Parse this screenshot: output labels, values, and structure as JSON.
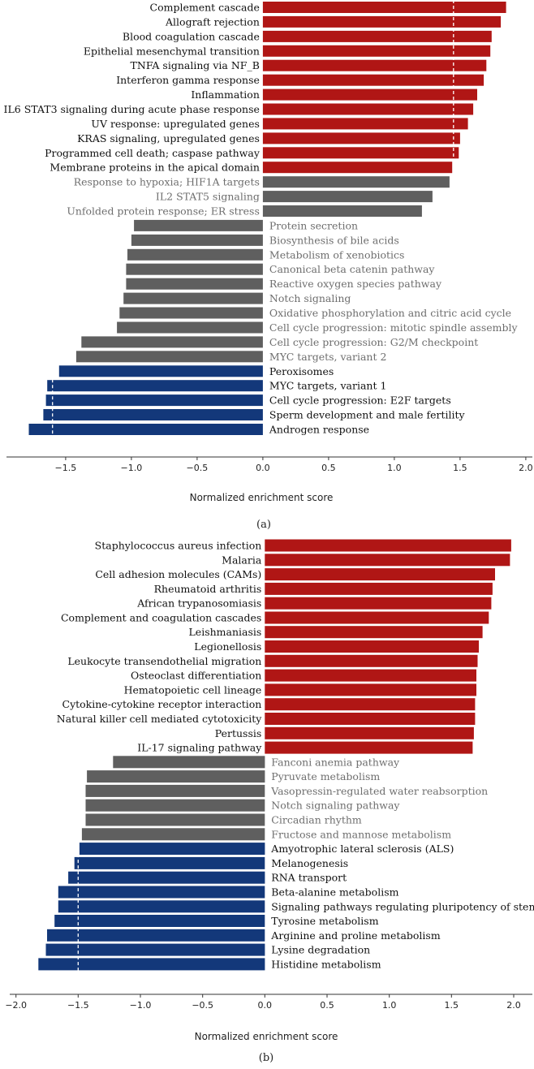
{
  "colors": {
    "up": "#b01615",
    "neutral": "#5f5f5f",
    "down": "#13387a",
    "sig_text": "#111111",
    "ns_text": "#6e6e6e"
  },
  "chart_data": [
    {
      "type": "bar",
      "orientation": "horizontal",
      "panel": "(a)",
      "xlabel": "Normalized enrichment score",
      "xlim": [
        -1.95,
        2.05
      ],
      "xticks": [
        -1.5,
        -1.0,
        -0.5,
        0.0,
        0.5,
        1.0,
        1.5,
        2.0
      ],
      "xtick_labels": [
        "−1.5",
        "−1.0",
        "−0.5",
        "0.0",
        "0.5",
        "1.0",
        "1.5",
        "2.0"
      ],
      "thresholds": [
        1.45,
        -1.6
      ],
      "categories": [
        "Complement cascade",
        "Allograft rejection",
        "Blood coagulation cascade",
        "Epithelial mesenchymal transition",
        "TNFA signaling via NF_B",
        "Interferon gamma response",
        "Inflammation",
        "IL6 STAT3 signaling during acute phase response",
        "UV response: upregulated genes",
        "KRAS signaling, upregulated genes",
        "Programmed cell death; caspase pathway",
        "Membrane proteins in the apical domain",
        "Response to hypoxia; HIF1A targets",
        "IL2 STAT5 signaling",
        "Unfolded protein response; ER stress",
        "Protein secretion",
        "Biosynthesis of bile acids",
        "Metabolism of xenobiotics",
        "Canonical beta catenin pathway",
        "Reactive oxygen species pathway",
        "Notch signaling",
        "Oxidative phosphorylation and citric acid cycle",
        "Cell cycle progression: mitotic spindle assembly",
        "Cell cycle progression: G2/M checkpoint",
        "MYC targets, variant 2",
        "Peroxisomes",
        "MYC targets, variant 1",
        "Cell cycle progression: E2F targets",
        "Sperm development and male fertility",
        "Androgen response"
      ],
      "values": [
        1.85,
        1.81,
        1.74,
        1.73,
        1.7,
        1.68,
        1.63,
        1.6,
        1.56,
        1.5,
        1.49,
        1.44,
        1.42,
        1.29,
        1.21,
        -0.98,
        -1.0,
        -1.03,
        -1.04,
        -1.04,
        -1.06,
        -1.09,
        -1.11,
        -1.38,
        -1.42,
        -1.55,
        -1.64,
        -1.65,
        -1.67,
        -1.78
      ],
      "group": [
        "up",
        "up",
        "up",
        "up",
        "up",
        "up",
        "up",
        "up",
        "up",
        "up",
        "up",
        "up",
        "neutral",
        "neutral",
        "neutral",
        "neutral",
        "neutral",
        "neutral",
        "neutral",
        "neutral",
        "neutral",
        "neutral",
        "neutral",
        "neutral",
        "neutral",
        "down",
        "down",
        "down",
        "down",
        "down"
      ]
    },
    {
      "type": "bar",
      "orientation": "horizontal",
      "panel": "(b)",
      "xlabel": "Normalized enrichment score",
      "xlim": [
        -2.05,
        2.15
      ],
      "xticks": [
        -2.0,
        -1.5,
        -1.0,
        -0.5,
        0.0,
        0.5,
        1.0,
        1.5,
        2.0
      ],
      "xtick_labels": [
        "−2.0",
        "−1.5",
        "−1.0",
        "−0.5",
        "0.0",
        "0.5",
        "1.0",
        "1.5",
        "2.0"
      ],
      "thresholds": [
        -1.5
      ],
      "categories": [
        "Staphylococcus aureus infection",
        "Malaria",
        "Cell adhesion molecules (CAMs)",
        "Rheumatoid arthritis",
        "African trypanosomiasis",
        "Complement and coagulation cascades",
        "Leishmaniasis",
        "Legionellosis",
        "Leukocyte transendothelial migration",
        "Osteoclast differentiation",
        "Hematopoietic cell lineage",
        "Cytokine-cytokine receptor interaction",
        "Natural killer cell mediated cytotoxicity",
        "Pertussis",
        "IL-17 signaling pathway",
        "Fanconi anemia pathway",
        "Pyruvate metabolism",
        "Vasopressin-regulated water reabsorption",
        "Notch signaling pathway",
        "Circadian rhythm",
        "Fructose and mannose metabolism",
        "Amyotrophic lateral sclerosis (ALS)",
        "Melanogenesis",
        "RNA transport",
        "Beta-alanine metabolism",
        "Signaling pathways regulating pluripotency of stem cells",
        "Tyrosine metabolism",
        "Arginine and proline metabolism",
        "Lysine degradation",
        "Histidine metabolism"
      ],
      "values": [
        1.98,
        1.97,
        1.85,
        1.83,
        1.82,
        1.8,
        1.75,
        1.72,
        1.71,
        1.7,
        1.7,
        1.69,
        1.69,
        1.68,
        1.67,
        -1.22,
        -1.43,
        -1.44,
        -1.44,
        -1.44,
        -1.47,
        -1.49,
        -1.53,
        -1.58,
        -1.66,
        -1.66,
        -1.69,
        -1.75,
        -1.76,
        -1.82
      ],
      "group": [
        "up",
        "up",
        "up",
        "up",
        "up",
        "up",
        "up",
        "up",
        "up",
        "up",
        "up",
        "up",
        "up",
        "up",
        "up",
        "neutral",
        "neutral",
        "neutral",
        "neutral",
        "neutral",
        "neutral",
        "down",
        "down",
        "down",
        "down",
        "down",
        "down",
        "down",
        "down",
        "down"
      ]
    }
  ]
}
